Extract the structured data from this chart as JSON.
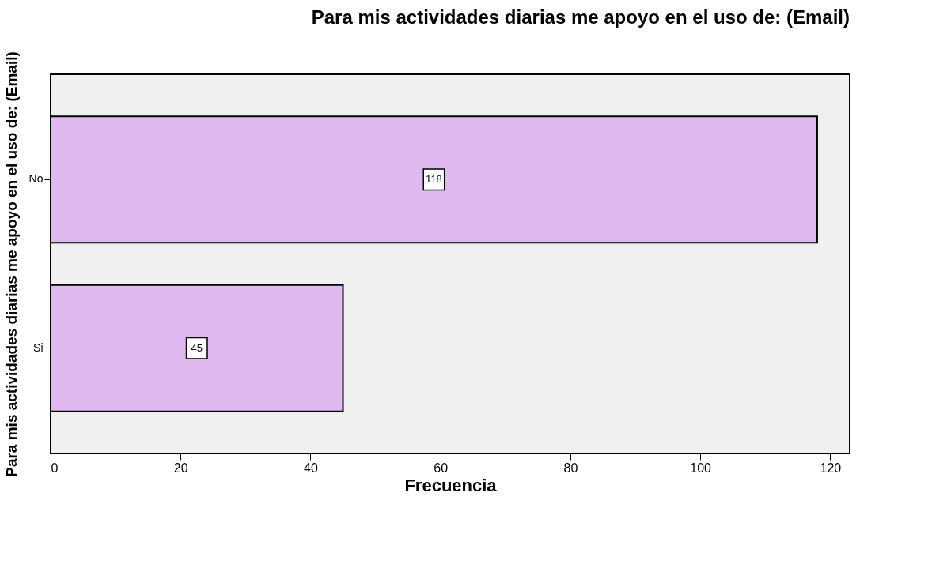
{
  "chart_data": {
    "type": "bar",
    "orientation": "horizontal",
    "title": "Para mis actividades diarias me apoyo en el uso de: (Email)",
    "xlabel": "Frecuencia",
    "ylabel": "Para mis actividades diarias me apoyo en el uso de: (Email)",
    "categories": [
      "No",
      "Si"
    ],
    "values": [
      118,
      45
    ],
    "color": "#dfb8f0",
    "xlim": [
      0,
      123
    ],
    "xticks": [
      0,
      20,
      40,
      60,
      80,
      100,
      120
    ],
    "grid": false,
    "data_labels": true
  }
}
